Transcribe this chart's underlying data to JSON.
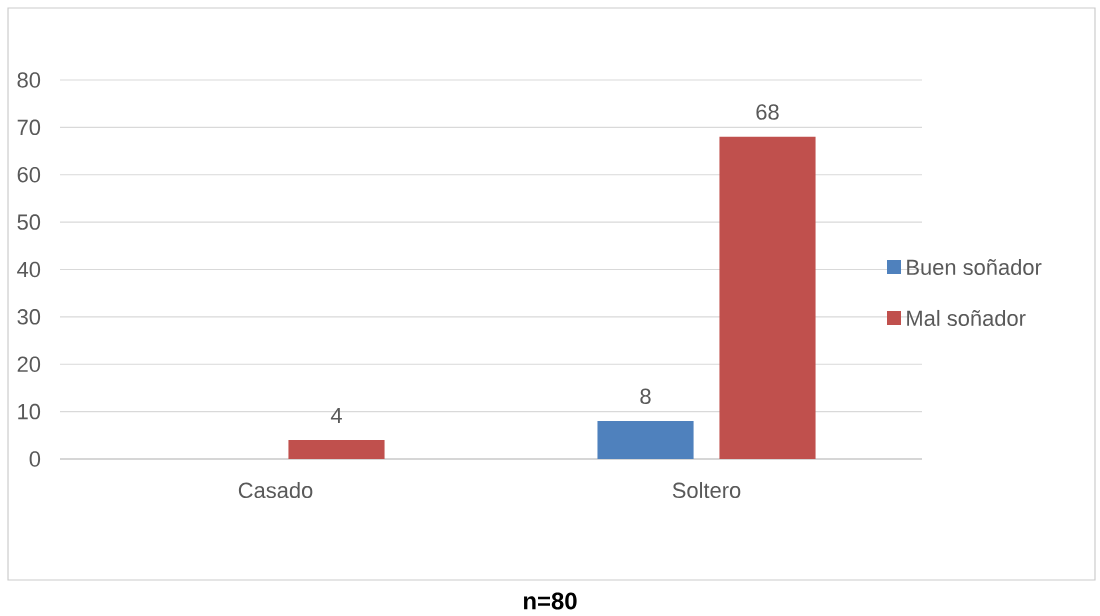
{
  "chart_data": {
    "type": "bar",
    "categories": [
      "Casado",
      "Soltero"
    ],
    "series": [
      {
        "name": "Buen soñador",
        "color": "#4f81bd",
        "values": [
          null,
          8
        ]
      },
      {
        "name": "Mal soñador",
        "color": "#c0504d",
        "values": [
          4,
          68
        ]
      }
    ],
    "ylim": [
      0,
      80
    ],
    "yticks": [
      0,
      10,
      20,
      30,
      40,
      50,
      60,
      70,
      80
    ],
    "grid": "y",
    "legend": "right",
    "data_labels": true,
    "annotations": [
      "n=80"
    ]
  }
}
